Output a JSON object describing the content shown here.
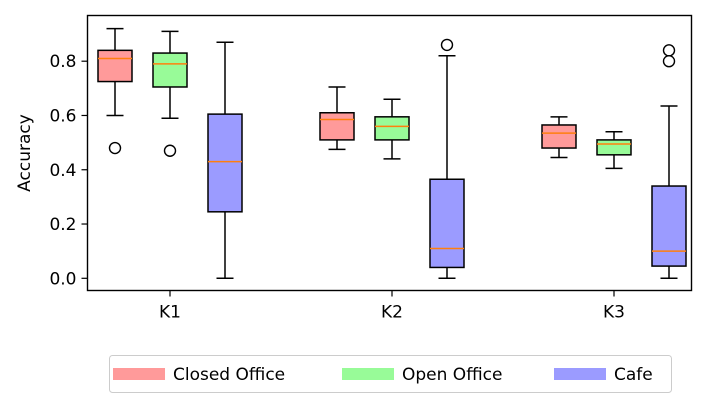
{
  "chart_data": {
    "type": "box",
    "title": "",
    "xlabel": "",
    "ylabel": "Accuracy",
    "ylim": [
      -0.045,
      0.96
    ],
    "yticks": [
      "0.0",
      "0.2",
      "0.4",
      "0.6",
      "0.8"
    ],
    "categories": [
      "K1",
      "K2",
      "K3"
    ],
    "grid": false,
    "legend_position": "bottom-center",
    "colors": {
      "Closed Office": "#ff9a9a",
      "Open Office": "#98fb98",
      "Cafe": "#9b9bff",
      "median": "#ff7f0e"
    },
    "series": [
      {
        "name": "Closed Office",
        "boxes": [
          {
            "category": "K1",
            "whislo": 0.6,
            "q1": 0.725,
            "median": 0.81,
            "q3": 0.84,
            "whishi": 0.92,
            "fliers": [
              0.48
            ]
          },
          {
            "category": "K2",
            "whislo": 0.475,
            "q1": 0.51,
            "median": 0.585,
            "q3": 0.61,
            "whishi": 0.705,
            "fliers": []
          },
          {
            "category": "K3",
            "whislo": 0.445,
            "q1": 0.48,
            "median": 0.535,
            "q3": 0.565,
            "whishi": 0.595,
            "fliers": []
          }
        ]
      },
      {
        "name": "Open Office",
        "boxes": [
          {
            "category": "K1",
            "whislo": 0.59,
            "q1": 0.705,
            "median": 0.79,
            "q3": 0.83,
            "whishi": 0.91,
            "fliers": [
              0.47
            ]
          },
          {
            "category": "K2",
            "whislo": 0.44,
            "q1": 0.51,
            "median": 0.56,
            "q3": 0.595,
            "whishi": 0.66,
            "fliers": []
          },
          {
            "category": "K3",
            "whislo": 0.405,
            "q1": 0.455,
            "median": 0.495,
            "q3": 0.51,
            "whishi": 0.54,
            "fliers": []
          }
        ]
      },
      {
        "name": "Cafe",
        "boxes": [
          {
            "category": "K1",
            "whislo": 0.0,
            "q1": 0.245,
            "median": 0.43,
            "q3": 0.605,
            "whishi": 0.87,
            "fliers": []
          },
          {
            "category": "K2",
            "whislo": 0.0,
            "q1": 0.04,
            "median": 0.11,
            "q3": 0.365,
            "whishi": 0.82,
            "fliers": [
              0.86
            ]
          },
          {
            "category": "K3",
            "whislo": 0.0,
            "q1": 0.045,
            "median": 0.1,
            "q3": 0.34,
            "whishi": 0.635,
            "fliers": [
              0.8,
              0.84
            ]
          }
        ]
      }
    ]
  }
}
